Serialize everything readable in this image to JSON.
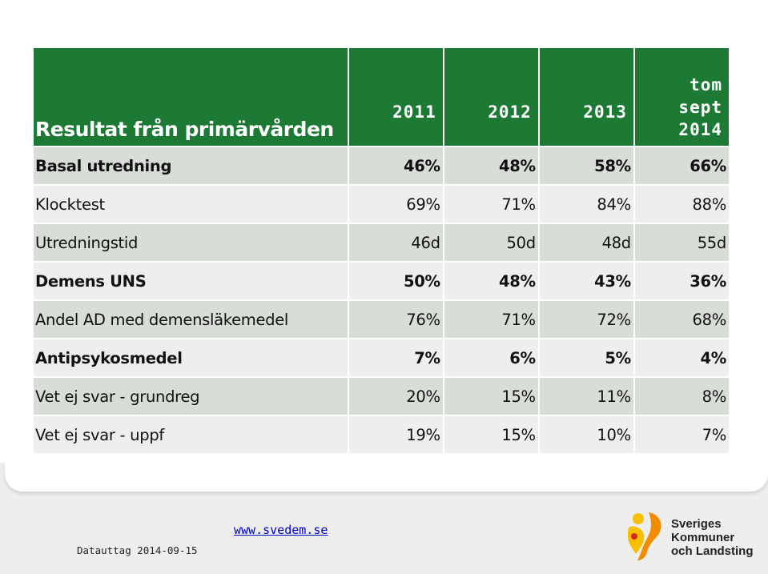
{
  "table": {
    "title": "Resultat från primärvården",
    "years": [
      "2011",
      "2012",
      "2013"
    ],
    "last_year_lines": [
      "tom",
      "sept",
      "2014"
    ],
    "rows": [
      {
        "label": "Basal utredning",
        "values": [
          "46%",
          "48%",
          "58%",
          "66%"
        ],
        "bold": true
      },
      {
        "label": "Klocktest",
        "values": [
          "69%",
          "71%",
          "84%",
          "88%"
        ],
        "bold": false
      },
      {
        "label": "Utredningstid",
        "values": [
          "46d",
          "50d",
          "48d",
          "55d"
        ],
        "bold": false
      },
      {
        "label": "Demens UNS",
        "values": [
          "50%",
          "48%",
          "43%",
          "36%"
        ],
        "bold": true
      },
      {
        "label": "Andel AD med demensläkemedel",
        "values": [
          "76%",
          "71%",
          "72%",
          "68%"
        ],
        "bold": false
      },
      {
        "label": "Antipsykosmedel",
        "values": [
          "7%",
          "6%",
          "5%",
          "4%"
        ],
        "bold": true
      },
      {
        "label": "Vet ej svar - grundreg",
        "values": [
          "20%",
          "15%",
          "11%",
          "8%"
        ],
        "bold": false
      },
      {
        "label": "Vet ej svar - uppf",
        "values": [
          "19%",
          "15%",
          "10%",
          "7%"
        ],
        "bold": false
      }
    ]
  },
  "footer": {
    "link": "www.svedem.se",
    "date": "Datauttag 2014-09-15",
    "logo_lines": [
      "Sveriges",
      "Kommuner",
      "och Landsting"
    ],
    "logo_icon": "skl-figure-icon"
  },
  "colors": {
    "header_green": "#1d7a35",
    "row_dark": "#d9ddd8",
    "row_light": "#eeefed",
    "logo_orange": "#f28c00",
    "logo_yellow": "#f6c000",
    "logo_red": "#d9271c"
  }
}
